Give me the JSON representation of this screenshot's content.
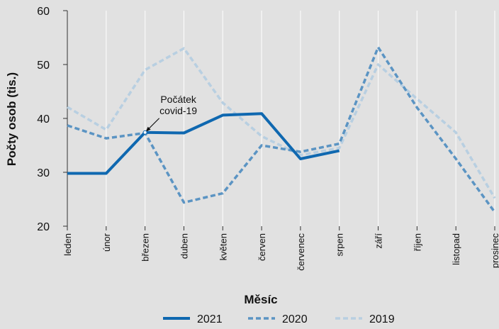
{
  "chart_data": {
    "type": "line",
    "title": "",
    "xlabel": "Měsíc",
    "ylabel": "Počty osob (tis.)",
    "ylim": [
      20,
      60
    ],
    "yticks": [
      20,
      30,
      40,
      50,
      60
    ],
    "grid": "vertical",
    "legend_position": "bottom",
    "categories": [
      "leden",
      "únor",
      "březen",
      "duben",
      "květen",
      "červen",
      "červenec",
      "srpen",
      "září",
      "říjen",
      "listopad",
      "prosinec"
    ],
    "series": [
      {
        "name": "2021",
        "style": "solid",
        "color": "#0f68b0",
        "values": [
          29.8,
          29.8,
          37.4,
          37.3,
          40.6,
          40.9,
          32.5,
          34.0,
          null,
          null,
          null,
          null
        ]
      },
      {
        "name": "2020",
        "style": "dashed",
        "color": "#5b94c3",
        "values": [
          38.7,
          36.3,
          37.3,
          24.4,
          26.1,
          35.0,
          33.8,
          35.3,
          53.2,
          42.0,
          32.5,
          22.6
        ]
      },
      {
        "name": "2019",
        "style": "dashed",
        "color": "#b8cfe1",
        "values": [
          42.1,
          37.9,
          49.0,
          53.0,
          42.9,
          36.7,
          33.2,
          34.5,
          50.0,
          43.6,
          37.4,
          25.2
        ]
      }
    ],
    "annotations": [
      {
        "text_lines": [
          "Počátek",
          "covid-19"
        ],
        "category": "březen",
        "value": 37.4
      }
    ]
  }
}
